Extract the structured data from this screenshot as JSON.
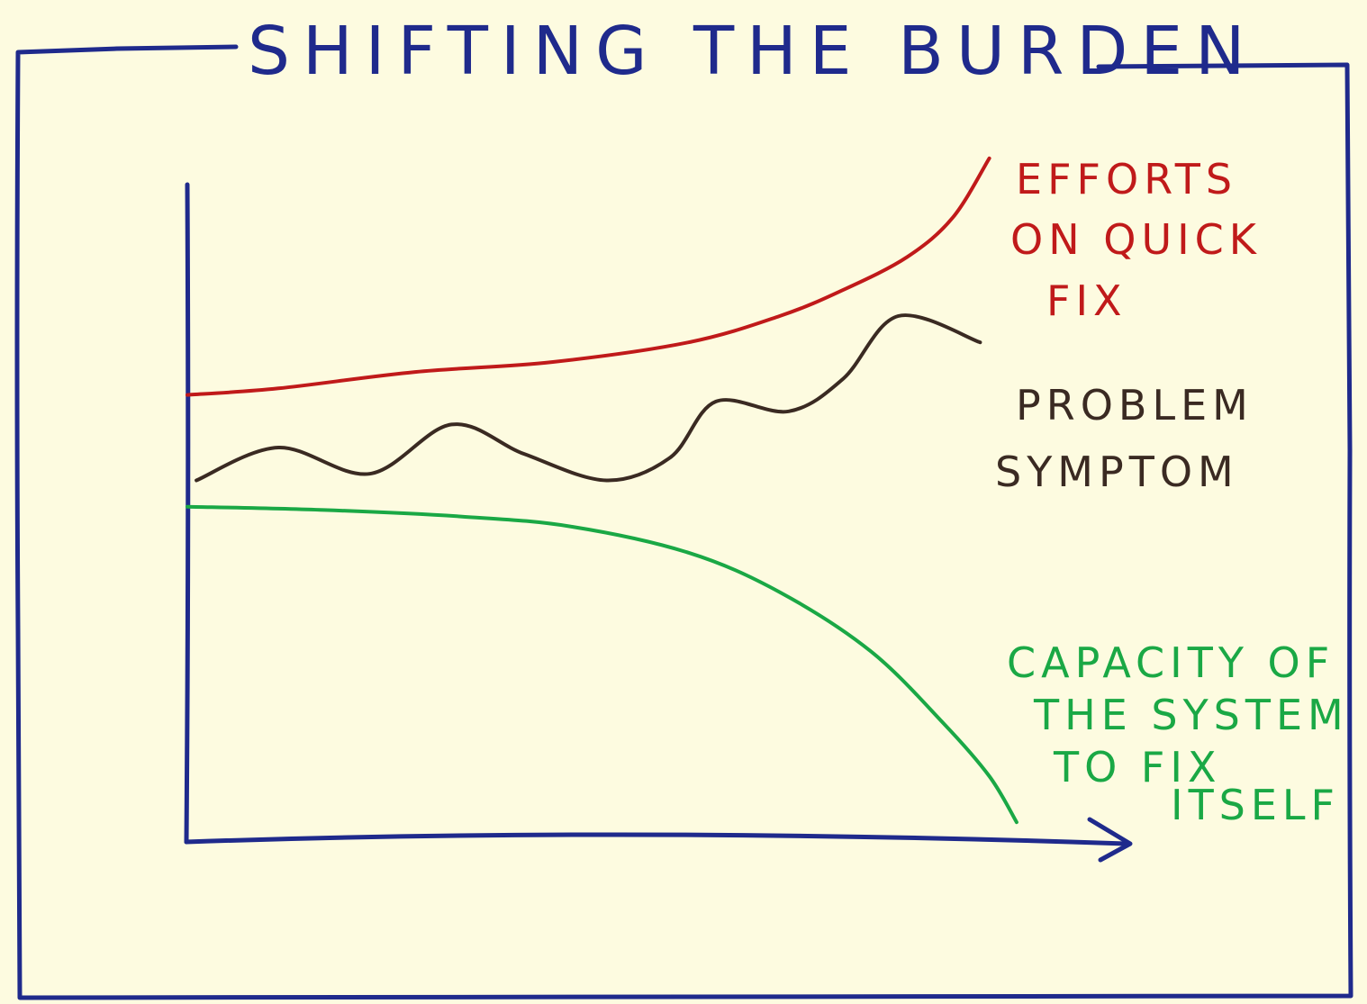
{
  "title": "SHIFTING THE BURDEN",
  "colors": {
    "frame": "#1f2a8c",
    "paper": "#fdfbe0",
    "quick_fix": "#c01a1a",
    "symptom": "#3a2a22",
    "capacity": "#1aa845"
  },
  "chart_data": {
    "type": "line",
    "title": "SHIFTING THE BURDEN",
    "xlabel": "",
    "ylabel": "",
    "xlim": [
      0,
      100
    ],
    "ylim": [
      0,
      100
    ],
    "grid": false,
    "legend": "inline labels at line ends",
    "series": [
      {
        "name": "EFFORTS ON QUICK FIX",
        "label_lines": [
          "EFFORTS",
          "ON QUICK",
          "FIX"
        ],
        "color": "#c01a1a",
        "x": [
          0,
          10,
          25,
          40,
          55,
          65,
          72,
          79,
          84,
          88
        ],
        "y": [
          68,
          69,
          71.5,
          73,
          76,
          80,
          84,
          89,
          95,
          104
        ]
      },
      {
        "name": "PROBLEM SYMPTOM",
        "label_lines": [
          "PROBLEM",
          "SYMPTOM"
        ],
        "color": "#3a2a22",
        "x": [
          1,
          10,
          20,
          29,
          37,
          46,
          53,
          58,
          66,
          72,
          78,
          87
        ],
        "y": [
          55,
          60,
          56,
          63.5,
          59,
          55,
          58.5,
          67,
          65.5,
          70.5,
          80,
          76
        ]
      },
      {
        "name": "CAPACITY OF THE SYSTEM TO FIX ITSELF",
        "label_lines": [
          "CAPACITY OF",
          "THE SYSTEM",
          "TO FIX",
          "ITSELF"
        ],
        "color": "#1aa845",
        "x": [
          0,
          15,
          30,
          42,
          55,
          65,
          75,
          83,
          88,
          91
        ],
        "y": [
          51,
          50.5,
          49.5,
          48,
          44,
          38,
          29,
          18,
          10,
          3
        ]
      }
    ]
  }
}
